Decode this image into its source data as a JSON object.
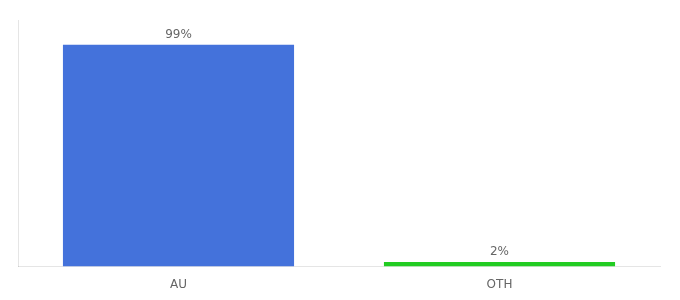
{
  "chart_data": {
    "type": "bar",
    "categories": [
      "AU",
      "OTH"
    ],
    "values": [
      99,
      2
    ],
    "colors": [
      "#4472DB",
      "#22CC22"
    ],
    "data_labels": true,
    "value_labels": [
      "99%",
      "2%"
    ],
    "ylim": [
      0,
      110
    ],
    "tick_labels": "x",
    "grid": false
  }
}
